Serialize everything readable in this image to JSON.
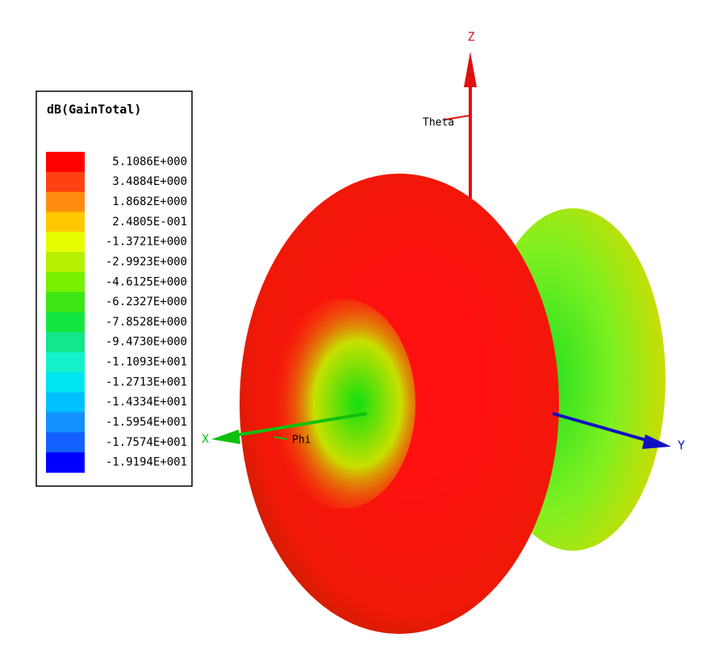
{
  "legend": {
    "title": "dB(GainTotal)",
    "entries": [
      {
        "label": "5.1086E+000",
        "color": "#ff0000"
      },
      {
        "label": "3.4884E+000",
        "color": "#ff4010"
      },
      {
        "label": "1.8682E+000",
        "color": "#ff8c10"
      },
      {
        "label": "2.4805E-001",
        "color": "#ffc800"
      },
      {
        "label": "-1.3721E+000",
        "color": "#e6ff00"
      },
      {
        "label": "-2.9923E+000",
        "color": "#b4f000"
      },
      {
        "label": "-4.6125E+000",
        "color": "#78f000"
      },
      {
        "label": "-6.2327E+000",
        "color": "#3ce614"
      },
      {
        "label": "-7.8528E+000",
        "color": "#14e640"
      },
      {
        "label": "-9.4730E+000",
        "color": "#14e68c"
      },
      {
        "label": "-1.1093E+001",
        "color": "#14f0c8"
      },
      {
        "label": "-1.2713E+001",
        "color": "#00e6f0"
      },
      {
        "label": "-1.4334E+001",
        "color": "#00c0ff"
      },
      {
        "label": "-1.5954E+001",
        "color": "#1490ff"
      },
      {
        "label": "-1.7574E+001",
        "color": "#1460ff"
      },
      {
        "label": "-1.9194E+001",
        "color": "#0000ff"
      }
    ]
  },
  "axes": {
    "x": "X",
    "y": "Y",
    "z": "Z",
    "theta": "Theta",
    "phi": "Phi"
  }
}
